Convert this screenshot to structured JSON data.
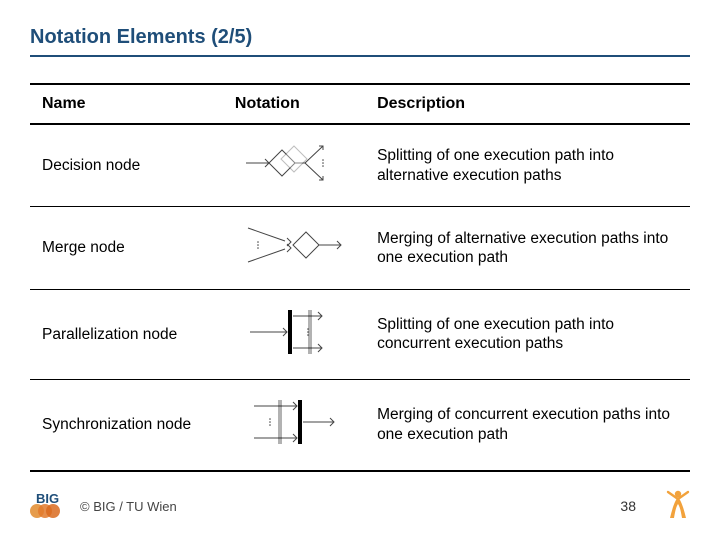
{
  "title": "Notation Elements (2/5)",
  "title_color": "#1f4e79",
  "underline_color": "#1f4e79",
  "columns": {
    "name": "Name",
    "notation": "Notation",
    "description": "Description"
  },
  "rows": [
    {
      "name": "Decision node",
      "desc": "Splitting of one execution path into alternative execution paths",
      "icon": "decision"
    },
    {
      "name": "Merge node",
      "desc": "Merging of alternative execution paths into one execution path",
      "icon": "merge"
    },
    {
      "name": "Parallelization node",
      "desc": "Splitting of one execution path into concurrent execution paths",
      "icon": "fork"
    },
    {
      "name": "Synchronization node",
      "desc": "Merging of concurrent execution paths into one execution path",
      "icon": "join"
    }
  ],
  "diagram_style": {
    "stroke": "#444444",
    "fill": "#ffffff",
    "bar_fill": "#000000",
    "stroke_width": 1,
    "arrow_size": 4
  },
  "footer": {
    "copyright": "© BIG / TU Wien",
    "page": "38"
  },
  "logo_text": "BIG",
  "logo_colors": {
    "orange": "#e28b2d",
    "blue": "#1f4e79",
    "figure": "#f2a23c"
  }
}
